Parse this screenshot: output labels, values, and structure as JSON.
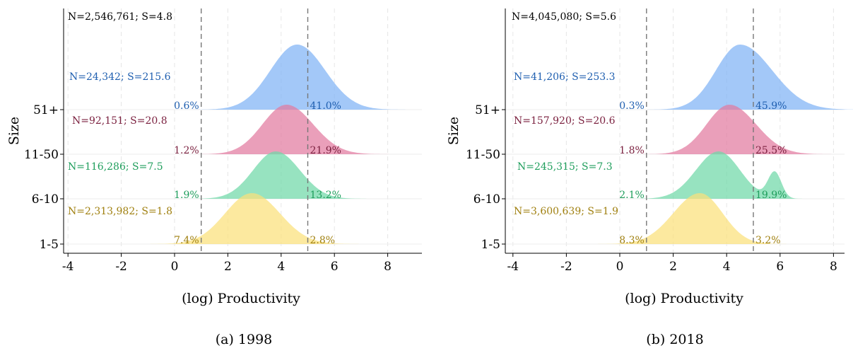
{
  "colors": {
    "51+": "#7fb3f5",
    "11-50": "#e27aa0",
    "6-10": "#6fd8a8",
    "1-5": "#fbe07a",
    "text_51+": "#1f5fb0",
    "text_11-50": "#7a1f3e",
    "text_6-10": "#1f9e5c",
    "text_1-5": "#a08010",
    "text_total": "#000000"
  },
  "chart_data": [
    {
      "type": "area",
      "caption": "(a)  1998",
      "xlabel": "(log) Productivity",
      "ylabel": "Size",
      "xlim": [
        -4.2,
        9.3
      ],
      "xticks": [
        -4,
        -2,
        0,
        2,
        4,
        6,
        8
      ],
      "cutoffs": [
        1,
        5
      ],
      "grid": true,
      "total_label": "N=2,546,761; S=4.8",
      "series": [
        {
          "name": "51+",
          "label": "N=24,342; S=215.6",
          "mode": 4.6,
          "sigma_left": 1.0,
          "sigma_right": 1.05,
          "left_pct": "0.6%",
          "right_pct": "41.0%"
        },
        {
          "name": "11-50",
          "label": "N=92,151; S=20.8",
          "mode": 4.2,
          "sigma_left": 0.9,
          "sigma_right": 1.0,
          "left_pct": "1.2%",
          "right_pct": "21.9%"
        },
        {
          "name": "6-10",
          "label": "N=116,286; S=7.5",
          "mode": 3.8,
          "sigma_left": 0.85,
          "sigma_right": 0.9,
          "left_pct": "1.9%",
          "right_pct": "13.2%"
        },
        {
          "name": "1-5",
          "label": "N=2,313,982; S=1.8",
          "mode": 2.9,
          "sigma_left": 1.0,
          "sigma_right": 1.05,
          "left_pct": "7.4%",
          "right_pct": "2.8%"
        }
      ]
    },
    {
      "type": "area",
      "caption": "(b)  2018",
      "xlabel": "(log) Productivity",
      "ylabel": "Size",
      "xlim": [
        -4.2,
        8.8
      ],
      "xticks": [
        -4,
        -2,
        0,
        2,
        4,
        6,
        8
      ],
      "cutoffs": [
        1,
        5
      ],
      "grid": true,
      "total_label": "N=4,045,080; S=5.6",
      "series": [
        {
          "name": "51+",
          "label": "N=41,206; S=253.3",
          "mode": 4.5,
          "sigma_left": 0.9,
          "sigma_right": 1.2,
          "left_pct": "0.3%",
          "right_pct": "45.9%"
        },
        {
          "name": "11-50",
          "label": "N=157,920; S=20.6",
          "mode": 4.1,
          "sigma_left": 0.85,
          "sigma_right": 1.0,
          "left_pct": "1.8%",
          "right_pct": "25.5%"
        },
        {
          "name": "6-10",
          "label": "N=245,315; S=7.3",
          "mode": 3.7,
          "sigma_left": 0.85,
          "sigma_right": 0.8,
          "left_pct": "2.1%",
          "right_pct": "19.9%",
          "bump": {
            "x": 5.8,
            "height": 0.55,
            "width": 0.25
          }
        },
        {
          "name": "1-5",
          "label": "N=3,600,639; S=1.9",
          "mode": 3.0,
          "sigma_left": 1.0,
          "sigma_right": 0.85,
          "left_pct": "8.3%",
          "right_pct": "3.2%"
        }
      ]
    }
  ]
}
